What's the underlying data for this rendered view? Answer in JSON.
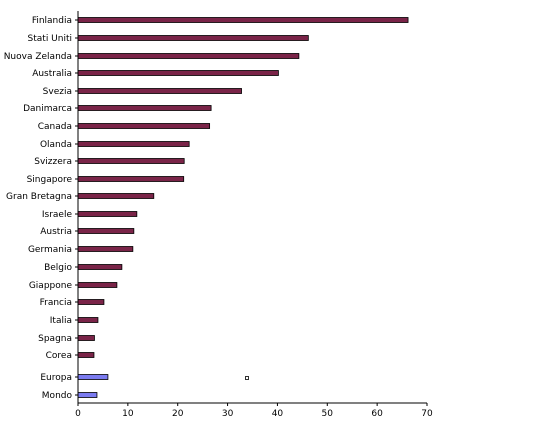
{
  "chart_data": {
    "type": "bar",
    "orientation": "horizontal",
    "categories": [
      "Finlandia",
      "Stati Uniti",
      "Nuova Zelanda",
      "Australia",
      "Svezia",
      "Danimarca",
      "Canada",
      "Olanda",
      "Svizzera",
      "Singapore",
      "Gran Bretagna",
      "Israele",
      "Austria",
      "Germania",
      "Belgio",
      "Giappone",
      "Francia",
      "Italia",
      "Spagna",
      "Corea",
      "Europa",
      "Mondo"
    ],
    "values": [
      66.2,
      46.2,
      44.3,
      40.2,
      32.8,
      26.7,
      26.4,
      22.3,
      21.3,
      21.2,
      15.2,
      11.8,
      11.2,
      11.0,
      8.8,
      7.8,
      5.2,
      4.0,
      3.3,
      3.2,
      6.0,
      3.8
    ],
    "highlight_categories": [
      "Europa",
      "Mondo"
    ],
    "colors": {
      "default": "#7a2448",
      "highlight": "#7b7bf0",
      "axis": "#000000"
    },
    "xlim": [
      0,
      70
    ],
    "xticks": [
      0,
      10,
      20,
      30,
      40,
      50,
      60,
      70
    ],
    "grid": false,
    "legend": "none"
  }
}
